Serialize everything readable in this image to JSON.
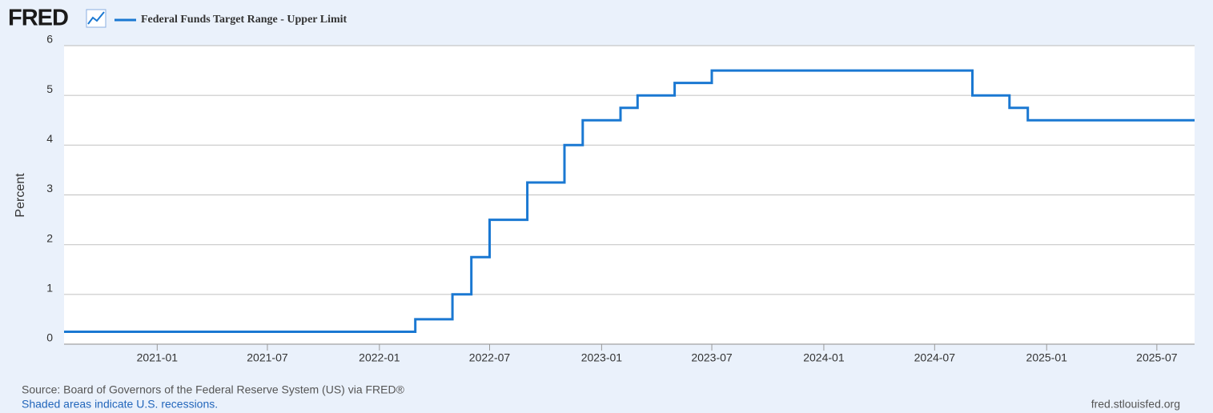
{
  "chart_data": {
    "type": "line",
    "step": true,
    "logo": "FRED",
    "ylabel": "Percent",
    "source": "Source: Board of Governors of the Federal Reserve System (US) via FRED®",
    "note": "Shaded areas indicate U.S. recessions.",
    "site": "fred.stlouisfed.org",
    "x": [
      "2020-08",
      "2022-03",
      "2022-05",
      "2022-06",
      "2022-07",
      "2022-09",
      "2022-11",
      "2022-12",
      "2023-02",
      "2023-03",
      "2023-05",
      "2023-07",
      "2024-09",
      "2024-11",
      "2024-12",
      "2025-09"
    ],
    "series": [
      {
        "name": "Federal Funds Target Range - Upper Limit",
        "color": "#1a78d2",
        "values": [
          0.25,
          0.5,
          1.0,
          1.75,
          2.5,
          3.25,
          4.0,
          4.5,
          4.75,
          5.0,
          5.25,
          5.5,
          5.0,
          4.75,
          4.5,
          4.5
        ]
      }
    ],
    "xlim": [
      "2020-08",
      "2025-09"
    ],
    "xticks": [
      "2021-01",
      "2021-07",
      "2022-01",
      "2022-07",
      "2023-01",
      "2023-07",
      "2024-01",
      "2024-07",
      "2025-01",
      "2025-07"
    ],
    "ylim": [
      0,
      6
    ],
    "yticks": [
      0,
      1,
      2,
      3,
      4,
      5,
      6
    ],
    "grid": true
  }
}
